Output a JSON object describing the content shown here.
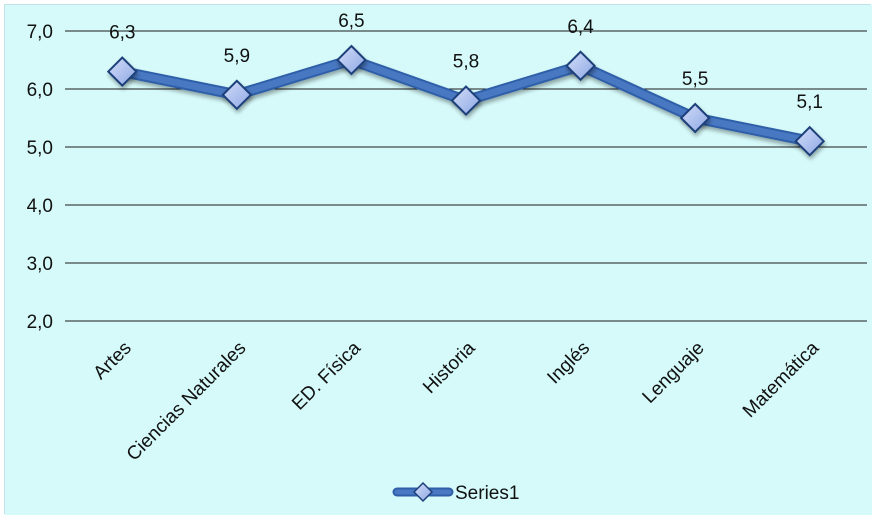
{
  "chart_data": {
    "type": "line",
    "title": "",
    "xlabel": "",
    "ylabel": "",
    "categories": [
      "Artes",
      "Ciencias Naturales",
      "ED. Física",
      "Historia",
      "Inglés",
      "Lenguaje",
      "Matemática"
    ],
    "series": [
      {
        "name": "Series1",
        "values": [
          6.3,
          5.9,
          6.5,
          5.8,
          6.4,
          5.5,
          5.1
        ],
        "data_labels": [
          "6,3",
          "5,9",
          "6,5",
          "5,8",
          "6,4",
          "5,5",
          "5,1"
        ],
        "color": "#4a78c2",
        "marker": "diamond"
      }
    ],
    "ylim": [
      2.0,
      7.0
    ],
    "yticks": [
      2.0,
      3.0,
      4.0,
      5.0,
      6.0,
      7.0
    ],
    "ytick_labels": [
      "2,0",
      "3,0",
      "4,0",
      "5,0",
      "6,0",
      "7,0"
    ],
    "grid": true,
    "legend_position": "bottom",
    "background_color": "#d6fafa"
  }
}
